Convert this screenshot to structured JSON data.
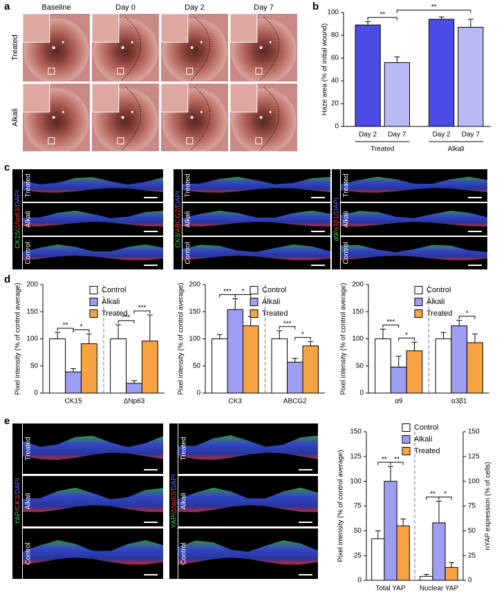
{
  "panels": [
    "a",
    "b",
    "c",
    "d",
    "e"
  ],
  "photos": {
    "columns": [
      "Baseline",
      "Day 0",
      "Day 2",
      "Day 7"
    ],
    "rows": [
      "Treated",
      "Alkali"
    ]
  },
  "stains_c": [
    {
      "parts": [
        "CK15/",
        "ΔNp63/",
        "DAPI"
      ],
      "rows": [
        "Treated",
        "Alkali",
        "Control"
      ]
    },
    {
      "parts": [
        "CK3/",
        "ABCG2/",
        "DAPI"
      ],
      "rows": [
        "Treated",
        "Alkali",
        "Control"
      ]
    },
    {
      "parts": [
        "α9/",
        "α3β1/",
        "DAPI"
      ],
      "rows": [
        "Treated",
        "Alkali",
        "Control"
      ]
    }
  ],
  "stains_e": [
    {
      "parts": [
        "YAP/",
        "CK3/",
        "DAPI"
      ],
      "rows": [
        "Treated",
        "Alkali",
        "Control"
      ]
    },
    {
      "parts": [
        "YAP/",
        "ΔNp63/",
        "DAPI"
      ],
      "rows": [
        "Treated",
        "Alkali",
        "Control"
      ]
    }
  ],
  "chart_data": [
    {
      "type": "bar",
      "ylabel": "Haze area (% of initial wound)",
      "categories": [
        "Day 2",
        "Day 7",
        "Day 2",
        "Day 7"
      ],
      "groups": [
        "Treated",
        "Alkali"
      ],
      "values": [
        89,
        56,
        94,
        87
      ],
      "errors": [
        3,
        5,
        2,
        7
      ],
      "colors": [
        "#4b4be6",
        "#b9b9f5",
        "#4b4be6",
        "#b9b9f5"
      ],
      "ylim": [
        0,
        100
      ],
      "yticks": [
        0,
        20,
        40,
        60,
        80,
        100
      ],
      "annotations": [
        "**",
        "**"
      ]
    },
    {
      "type": "grouped_bar",
      "ylabel": "Pixel intensity (% of control average)",
      "categories": [
        "CK15",
        "ΔNp63"
      ],
      "series": [
        {
          "name": "Control",
          "color": "#ffffff",
          "values": [
            100,
            100
          ],
          "errors": [
            12,
            26
          ]
        },
        {
          "name": "Alkali",
          "color": "#9f9ff2",
          "values": [
            39,
            18
          ],
          "errors": [
            6,
            5
          ]
        },
        {
          "name": "Treated",
          "color": "#f7a343",
          "values": [
            91,
            96
          ],
          "errors": [
            18,
            48
          ]
        }
      ],
      "ylim": [
        0,
        200
      ],
      "yticks": [
        0,
        50,
        100,
        150,
        200
      ],
      "legend": "upper right",
      "annotations": [
        "**",
        "*",
        "***",
        "***"
      ]
    },
    {
      "type": "grouped_bar",
      "ylabel": "Pixel intensity (% of control average)",
      "categories": [
        "CK3",
        "ABCG2"
      ],
      "series": [
        {
          "name": "Control",
          "color": "#ffffff",
          "values": [
            100,
            100
          ],
          "errors": [
            8,
            15
          ]
        },
        {
          "name": "Alkali",
          "color": "#9f9ff2",
          "values": [
            154,
            57
          ],
          "errors": [
            20,
            7
          ]
        },
        {
          "name": "Treated",
          "color": "#f7a343",
          "values": [
            124,
            87
          ],
          "errors": [
            17,
            8
          ]
        }
      ],
      "ylim": [
        0,
        200
      ],
      "yticks": [
        0,
        50,
        100,
        150,
        200
      ],
      "legend": "upper right",
      "annotations": [
        "***",
        "*",
        "***",
        "*"
      ]
    },
    {
      "type": "grouped_bar",
      "ylabel": "Pixel intensity (% of control average)",
      "categories": [
        "α9",
        "α3β1"
      ],
      "series": [
        {
          "name": "Control",
          "color": "#ffffff",
          "values": [
            100,
            100
          ],
          "errors": [
            18,
            12
          ]
        },
        {
          "name": "Alkali",
          "color": "#9f9ff2",
          "values": [
            48,
            124
          ],
          "errors": [
            20,
            10
          ]
        },
        {
          "name": "Treated",
          "color": "#f7a343",
          "values": [
            78,
            93
          ],
          "errors": [
            16,
            16
          ]
        }
      ],
      "ylim": [
        0,
        200
      ],
      "yticks": [
        0,
        50,
        100,
        150,
        200
      ],
      "legend": "upper right",
      "annotations": [
        "***",
        "*",
        "*"
      ]
    },
    {
      "type": "grouped_bar",
      "ylabel": "Pixel intensity (% of control average)",
      "y2label": "nYAP expression (% of cells)",
      "categories": [
        "Total YAP",
        "Nuclear YAP"
      ],
      "category_axes": [
        "y",
        "y2"
      ],
      "series": [
        {
          "name": "Control",
          "color": "#ffffff",
          "values": [
            42,
            4
          ],
          "errors": [
            8,
            2
          ]
        },
        {
          "name": "Alkali",
          "color": "#9f9ff2",
          "values": [
            100,
            58
          ],
          "errors": [
            15,
            22
          ]
        },
        {
          "name": "Treated",
          "color": "#f7a343",
          "values": [
            55,
            13
          ],
          "errors": [
            7,
            5
          ]
        }
      ],
      "ylim": [
        0,
        150
      ],
      "yticks": [
        0,
        25,
        50,
        75,
        100,
        125,
        150
      ],
      "y2lim": [
        0,
        150
      ],
      "y2ticks": [
        0,
        25,
        50,
        75,
        100,
        125,
        150
      ],
      "legend": "upper center",
      "annotations": [
        "**",
        "**",
        "**",
        "*"
      ]
    }
  ]
}
